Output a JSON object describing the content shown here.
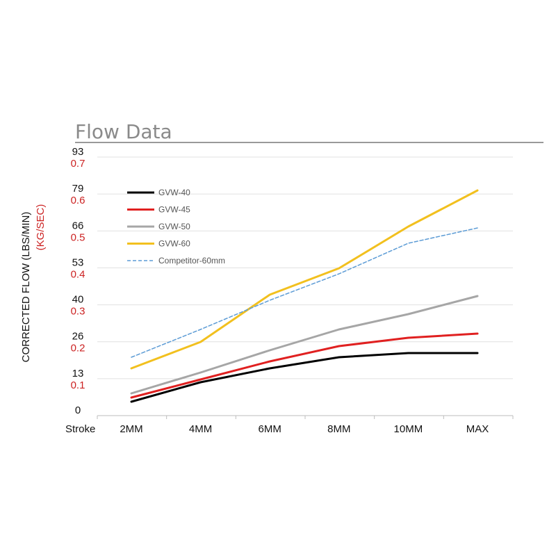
{
  "chart_data": {
    "type": "line",
    "title": "Flow Data",
    "xlabel": "Stroke",
    "ylabel": "CORRECTED FLOW (LBS/MIN)",
    "ylabel_secondary": "(KG/SEC)",
    "categories": [
      "2MM",
      "4MM",
      "6MM",
      "8MM",
      "10MM",
      "MAX"
    ],
    "ylim": [
      0,
      93
    ],
    "yticks_primary": [
      "0",
      "13",
      "26",
      "40",
      "53",
      "66",
      "79",
      "93"
    ],
    "yticks_secondary": [
      "0.1",
      "0.2",
      "0.3",
      "0.4",
      "0.5",
      "0.6",
      "0.7"
    ],
    "grid": true,
    "legend_position": "top-left",
    "series": [
      {
        "name": "GVW-40",
        "color": "#000000",
        "dashed": false,
        "values": [
          5,
          12,
          17,
          21,
          22.5,
          22.5
        ]
      },
      {
        "name": "GVW-45",
        "color": "#e02020",
        "dashed": false,
        "values": [
          6.5,
          13,
          19.5,
          25,
          28,
          29.5
        ]
      },
      {
        "name": "GVW-50",
        "color": "#a6a6a6",
        "dashed": false,
        "values": [
          8,
          15.5,
          23.5,
          31,
          36.5,
          43
        ]
      },
      {
        "name": "GVW-60",
        "color": "#f2c01e",
        "dashed": false,
        "values": [
          17,
          26.5,
          43.5,
          53,
          68,
          81
        ]
      },
      {
        "name": "Competitor-60mm",
        "color": "#5b9bd5",
        "dashed": true,
        "values": [
          21,
          31,
          41.5,
          51,
          62,
          67.5
        ]
      }
    ]
  }
}
